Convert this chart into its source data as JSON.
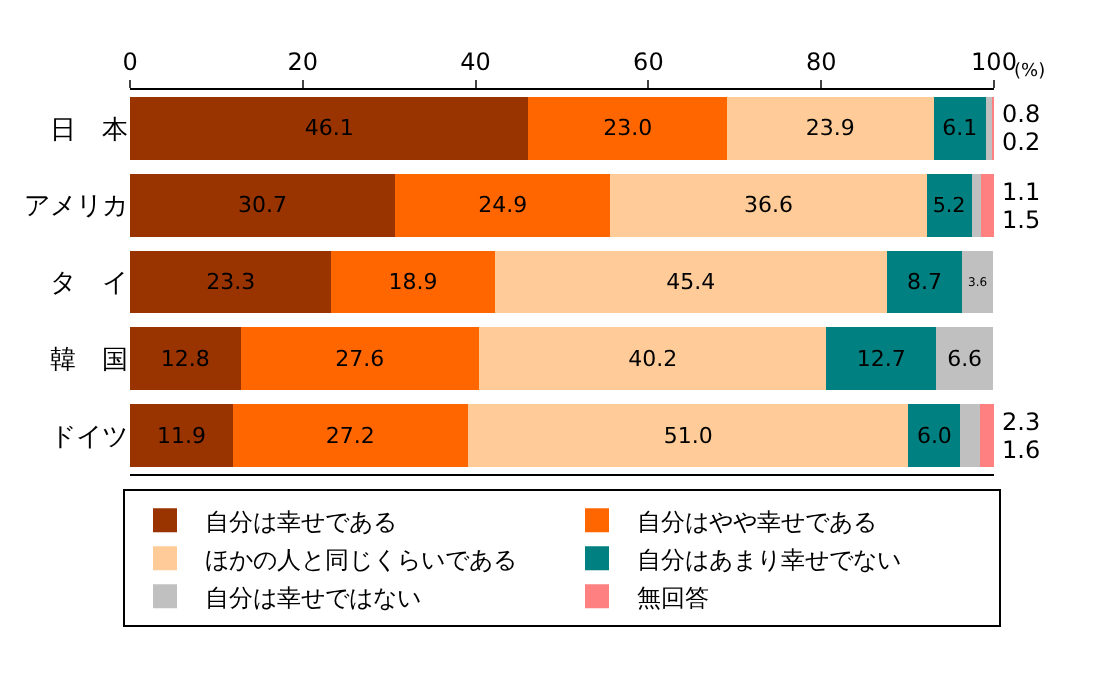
{
  "chart_data": {
    "type": "bar",
    "orientation": "horizontal",
    "stacked": true,
    "categories": [
      "日　本",
      "アメリカ",
      "タ　イ",
      "韓　国",
      "ドイツ"
    ],
    "series": [
      {
        "name": "自分は幸せである",
        "color": "#993300",
        "values": [
          46.1,
          30.7,
          23.3,
          12.8,
          11.9
        ],
        "value_labels": [
          "46.1",
          "30.7",
          "23.3",
          "12.8",
          "11.9"
        ]
      },
      {
        "name": "自分はやや幸せである",
        "color": "#ff6600",
        "values": [
          23.0,
          24.9,
          18.9,
          27.6,
          27.2
        ],
        "value_labels": [
          "23.0",
          "24.9",
          "18.9",
          "27.6",
          "27.2"
        ]
      },
      {
        "name": "ほかの人と同じくらいである",
        "color": "#ffcc99",
        "values": [
          23.9,
          36.6,
          45.4,
          40.2,
          51.0
        ],
        "value_labels": [
          "23.9",
          "36.6",
          "45.4",
          "40.2",
          "51.0"
        ]
      },
      {
        "name": "自分はあまり幸せでない",
        "color": "#008080",
        "values": [
          6.1,
          5.2,
          8.7,
          12.7,
          6.0
        ],
        "value_labels": [
          "6.1",
          "5.2",
          "8.7",
          "12.7",
          "6.0"
        ]
      },
      {
        "name": "自分は幸せではない",
        "color": "#c0c0c0",
        "values": [
          0.8,
          1.1,
          3.6,
          6.6,
          2.3
        ],
        "value_labels": [
          "0.8",
          "1.1",
          "3.6",
          "6.6",
          "2.3"
        ]
      },
      {
        "name": "無回答",
        "color": "#ff8080",
        "values": [
          0.2,
          1.5,
          null,
          null,
          1.6
        ],
        "value_labels": [
          "0.2",
          "1.5",
          null,
          null,
          "1.6"
        ]
      }
    ],
    "xlim": [
      0,
      100
    ],
    "xticks": [
      0,
      20,
      40,
      60,
      80,
      100
    ],
    "annotations": [
      "(%)"
    ],
    "legend": "bottom"
  }
}
